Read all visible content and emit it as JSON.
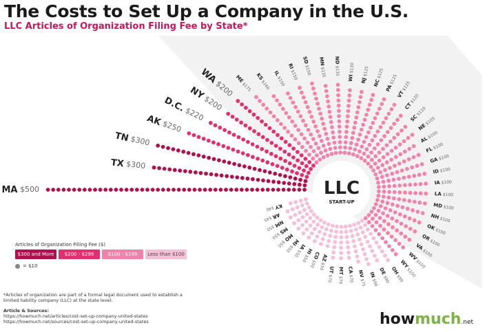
{
  "header": {
    "title": "The Costs to Set Up a Company in the U.S.",
    "subtitle": "LLC Articles of Organization Filing Fee by State*"
  },
  "center": {
    "label": "LLC",
    "sublabel": "START-UP"
  },
  "legend": {
    "title": "Articles of Organization Filling Fee ($)",
    "items": [
      {
        "label": "$300 and More",
        "color": "#b0104e"
      },
      {
        "label": "$200 - $299",
        "color": "#e0306f"
      },
      {
        "label": "$100 - $199",
        "color": "#f083ab"
      },
      {
        "label": "Less than $100",
        "color": "#f7bfd4"
      }
    ],
    "dot_label": "= $10"
  },
  "footnote": "*Articles of organization are part of a formal legal document used to establish a limited liability company (LLC) at the state level.",
  "sources": {
    "heading": "Article & Sources:",
    "lines": [
      "https://howmuch.net/articles/cost-set-up-company-united-states",
      "https://howmuch.net/sources/cost-set-up-company-united-states"
    ]
  },
  "brand": {
    "how": "how",
    "much": "much",
    "net": ".net"
  },
  "chart_data": {
    "type": "radial-dot-bar",
    "unit_per_dot": 10,
    "colors": {
      "300+": "#b0104e",
      "200-299": "#e0306f",
      "100-199": "#f083ab",
      "<100": "#f7bfd4"
    },
    "states": [
      {
        "state": "MA",
        "fee": 500
      },
      {
        "state": "TX",
        "fee": 300
      },
      {
        "state": "TN",
        "fee": 300
      },
      {
        "state": "AK",
        "fee": 250
      },
      {
        "state": "D.C.",
        "fee": 220
      },
      {
        "state": "NY",
        "fee": 200
      },
      {
        "state": "WA",
        "fee": 200
      },
      {
        "state": "ME",
        "fee": 175
      },
      {
        "state": "KS",
        "fee": 160
      },
      {
        "state": "IL",
        "fee": 150
      },
      {
        "state": "RI",
        "fee": 150
      },
      {
        "state": "SD",
        "fee": 150
      },
      {
        "state": "MN",
        "fee": 135
      },
      {
        "state": "ND",
        "fee": 135
      },
      {
        "state": "WI",
        "fee": 130
      },
      {
        "state": "NJ",
        "fee": 125
      },
      {
        "state": "NC",
        "fee": 125
      },
      {
        "state": "PA",
        "fee": 125
      },
      {
        "state": "VT",
        "fee": 125
      },
      {
        "state": "CT",
        "fee": 120
      },
      {
        "state": "SC",
        "fee": 110
      },
      {
        "state": "NE",
        "fee": 105
      },
      {
        "state": "AL",
        "fee": 100
      },
      {
        "state": "FL",
        "fee": 100
      },
      {
        "state": "GA",
        "fee": 100
      },
      {
        "state": "ID",
        "fee": 100
      },
      {
        "state": "IA",
        "fee": 100
      },
      {
        "state": "LA",
        "fee": 100
      },
      {
        "state": "MD",
        "fee": 100
      },
      {
        "state": "NH",
        "fee": 100
      },
      {
        "state": "OK",
        "fee": 100
      },
      {
        "state": "OR",
        "fee": 100
      },
      {
        "state": "VA",
        "fee": 100
      },
      {
        "state": "WV",
        "fee": 100
      },
      {
        "state": "WY",
        "fee": 100
      },
      {
        "state": "OH",
        "fee": 99
      },
      {
        "state": "DE",
        "fee": 90
      },
      {
        "state": "IN",
        "fee": 90
      },
      {
        "state": "NV",
        "fee": 75
      },
      {
        "state": "CA",
        "fee": 70
      },
      {
        "state": "MT",
        "fee": 70
      },
      {
        "state": "UT",
        "fee": 70
      },
      {
        "state": "AZ",
        "fee": 50
      },
      {
        "state": "CO",
        "fee": 50
      },
      {
        "state": "HI",
        "fee": 50
      },
      {
        "state": "IA",
        "fee": 50
      },
      {
        "state": "MI",
        "fee": 50
      },
      {
        "state": "MO",
        "fee": 50
      },
      {
        "state": "MS",
        "fee": 50
      },
      {
        "state": "NM",
        "fee": 50
      },
      {
        "state": "AR",
        "fee": 45
      },
      {
        "state": "KY",
        "fee": 40
      }
    ]
  }
}
